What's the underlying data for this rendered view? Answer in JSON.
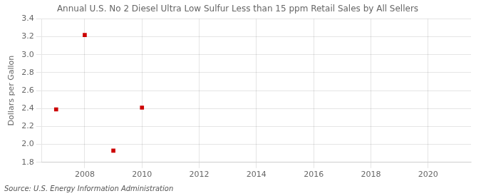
{
  "chart_data": {
    "type": "scatter",
    "title": "Annual U.S. No 2 Diesel Ultra Low Sulfur Less than 15 ppm Retail Sales by All Sellers",
    "ylabel": "Dollars per Gallon",
    "annotations": [
      "Source: U.S. Energy Information Administration"
    ],
    "x": [
      2007,
      2008,
      2009,
      2010
    ],
    "values": [
      2.39,
      3.22,
      1.93,
      2.41
    ],
    "color": "#cc0000",
    "marker": "square",
    "xlim": [
      2006.5,
      2021.5
    ],
    "xticks": [
      2008,
      2010,
      2012,
      2014,
      2016,
      2018,
      2020
    ],
    "ylim": [
      1.8,
      3.4
    ],
    "yticks": [
      1.8,
      {
        "value": 2.0,
        "label": "2.0"
      },
      2.2,
      2.4,
      2.6,
      2.8,
      {
        "value": 3.0,
        "label": "3.0"
      },
      3.2,
      3.4
    ],
    "grid": true
  }
}
